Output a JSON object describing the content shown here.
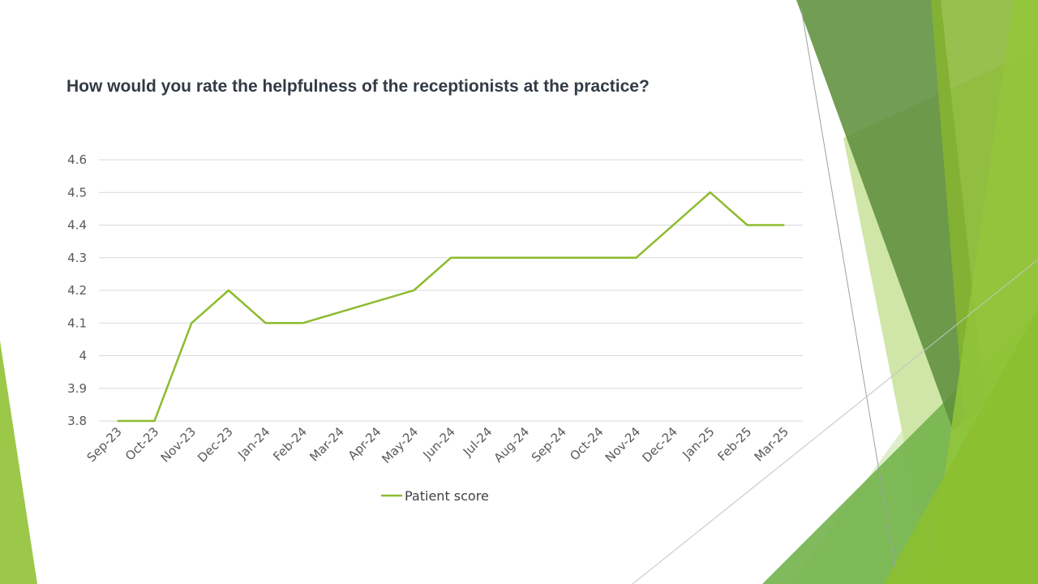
{
  "slide": {
    "accent_colors": [
      "#6a9a4c",
      "#84b331",
      "#9ac63e",
      "#c9e39a",
      "#5fa63e"
    ]
  },
  "chart_data": {
    "type": "line",
    "title": "How would you rate the helpfulness of the receptionists at the practice?",
    "categories": [
      "Sep-23",
      "Oct-23",
      "Nov-23",
      "Dec-23",
      "Jan-24",
      "Feb-24",
      "Mar-24",
      "Apr-24",
      "May-24",
      "Jun-24",
      "Jul-24",
      "Aug-24",
      "Sep-24",
      "Oct-24",
      "Nov-24",
      "Dec-24",
      "Jan-25",
      "Feb-25",
      "Mar-25"
    ],
    "series": [
      {
        "name": "Patient score",
        "color": "#8dbb2f",
        "values": [
          3.8,
          3.8,
          4.1,
          4.2,
          4.1,
          4.1,
          null,
          null,
          4.2,
          4.3,
          null,
          null,
          null,
          null,
          4.3,
          null,
          4.5,
          4.4,
          4.4
        ]
      }
    ],
    "ylim": [
      3.8,
      4.6
    ],
    "yticks": [
      "3.8",
      "3.9",
      "4",
      "4.1",
      "4.2",
      "4.3",
      "4.4",
      "4.5",
      "4.6"
    ],
    "grid": true,
    "legend_position": "bottom"
  }
}
